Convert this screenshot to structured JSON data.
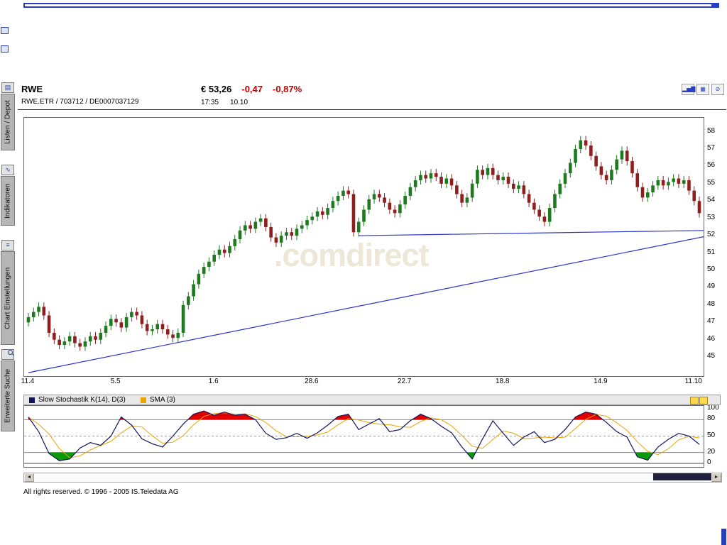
{
  "header": {
    "symbol": "RWE",
    "instrument": "RWE.ETR  /  703712  /  DE0007037129",
    "price": "€ 53,26",
    "change_abs": "-0,47",
    "change_pct": "-0,87%",
    "time": "17:35",
    "date": "10.10"
  },
  "toolbar": {
    "icons": [
      {
        "glyph": "▂▅▇"
      },
      {
        "glyph": "▦"
      },
      {
        "glyph": "⊘"
      }
    ]
  },
  "sidebar": {
    "items": [
      {
        "label": "Listen / Depot",
        "glyph": "▤"
      },
      {
        "label": "Indikatoren",
        "glyph": "∿"
      },
      {
        "label": "Chart Einstellungen",
        "glyph": "≡"
      },
      {
        "label": "Erweiterte Suche",
        "glyph": ""
      }
    ]
  },
  "watermark": ".comdirect",
  "footer": {
    "copyright": "All rights reserved. © 1996 - 2005 IS.Teledata AG"
  },
  "colors": {
    "negative": "#c00000",
    "window_blue": "#2a3fc0",
    "watermark": "#ece7d7"
  },
  "chart_data": [
    {
      "type": "candlestick",
      "title": "RWE daily price",
      "y_ticks": [
        45,
        46,
        47,
        48,
        49,
        50,
        51,
        52,
        53,
        54,
        55,
        56,
        57,
        58
      ],
      "y_range": [
        43.9,
        58.8
      ],
      "x_ticks": [
        {
          "label": "11.4",
          "day": 0
        },
        {
          "label": "5.5",
          "day": 17
        },
        {
          "label": "1.6",
          "day": 36
        },
        {
          "label": "28.6",
          "day": 55
        },
        {
          "label": "22.7",
          "day": 73
        },
        {
          "label": "18.8",
          "day": 92
        },
        {
          "label": "14.9",
          "day": 111
        },
        {
          "label": "11.10",
          "day": 129
        }
      ],
      "first_open": 47.0,
      "wick_extent": 0.25,
      "up_color": "#1f7a1f",
      "down_color": "#8f1f1f",
      "closes": [
        47.3,
        47.6,
        47.9,
        47.4,
        46.4,
        46.0,
        45.7,
        45.9,
        46.2,
        45.8,
        45.6,
        45.9,
        46.2,
        46.0,
        46.4,
        46.8,
        47.2,
        47.0,
        46.7,
        47.3,
        47.6,
        47.4,
        46.9,
        46.5,
        46.6,
        46.9,
        46.6,
        46.3,
        46.1,
        46.4,
        48.0,
        48.5,
        49.2,
        49.8,
        50.2,
        50.5,
        50.9,
        51.2,
        51.0,
        51.4,
        51.8,
        52.3,
        52.6,
        52.4,
        52.8,
        53.0,
        52.5,
        51.9,
        51.6,
        52.0,
        52.2,
        52.0,
        52.4,
        52.6,
        52.9,
        53.1,
        53.4,
        53.2,
        53.6,
        54.0,
        54.3,
        54.6,
        54.4,
        52.2,
        52.8,
        53.5,
        54.1,
        54.4,
        54.2,
        53.9,
        53.5,
        53.3,
        53.8,
        54.3,
        54.8,
        55.2,
        55.5,
        55.3,
        55.6,
        55.4,
        55.0,
        55.3,
        54.9,
        54.4,
        53.9,
        54.2,
        55.0,
        55.8,
        55.5,
        55.9,
        55.5,
        55.2,
        55.4,
        55.0,
        54.7,
        54.9,
        54.4,
        53.9,
        53.5,
        53.1,
        52.8,
        53.6,
        54.4,
        55.0,
        55.6,
        56.2,
        57.0,
        57.5,
        57.2,
        56.6,
        56.0,
        55.5,
        55.2,
        55.8,
        56.4,
        56.9,
        56.3,
        55.6,
        54.8,
        54.2,
        54.5,
        54.9,
        55.2,
        54.9,
        55.1,
        55.3,
        55.0,
        55.2,
        54.6,
        54.0,
        53.3
      ],
      "trendlines": [
        {
          "d1": 0,
          "p1": 44.1,
          "d2": 131,
          "p2": 51.95,
          "color": "#2a35c8"
        },
        {
          "d1": 64,
          "p1": 52.0,
          "d2": 131,
          "p2": 52.3,
          "color": "#2a35c8"
        }
      ]
    },
    {
      "type": "line",
      "title": "Slow Stochastik",
      "legend": [
        {
          "label": "Slow Stochastik K(14), D(3)",
          "color": "#14145e"
        },
        {
          "label": "SMA (3)",
          "color": "#eba600"
        }
      ],
      "y_ticks": [
        100,
        80,
        50,
        20,
        0
      ],
      "ylim": [
        0,
        100
      ],
      "overbought": 80,
      "oversold": 20,
      "step_days": 2,
      "k_color": "#14145e",
      "sma_color": "#eba600",
      "sma_window": 3,
      "overbought_fill": "#e00000",
      "oversold_fill": "#0a9a0a",
      "k_values": [
        85,
        58,
        18,
        5,
        8,
        28,
        38,
        33,
        50,
        85,
        70,
        45,
        36,
        30,
        50,
        72,
        90,
        96,
        88,
        94,
        88,
        90,
        80,
        55,
        44,
        47,
        55,
        46,
        56,
        70,
        86,
        90,
        62,
        72,
        82,
        58,
        62,
        78,
        90,
        82,
        68,
        56,
        30,
        8,
        45,
        78,
        55,
        33,
        48,
        58,
        38,
        44,
        62,
        85,
        94,
        90,
        75,
        58,
        48,
        12,
        6,
        30,
        44,
        55,
        50,
        35
      ]
    }
  ]
}
